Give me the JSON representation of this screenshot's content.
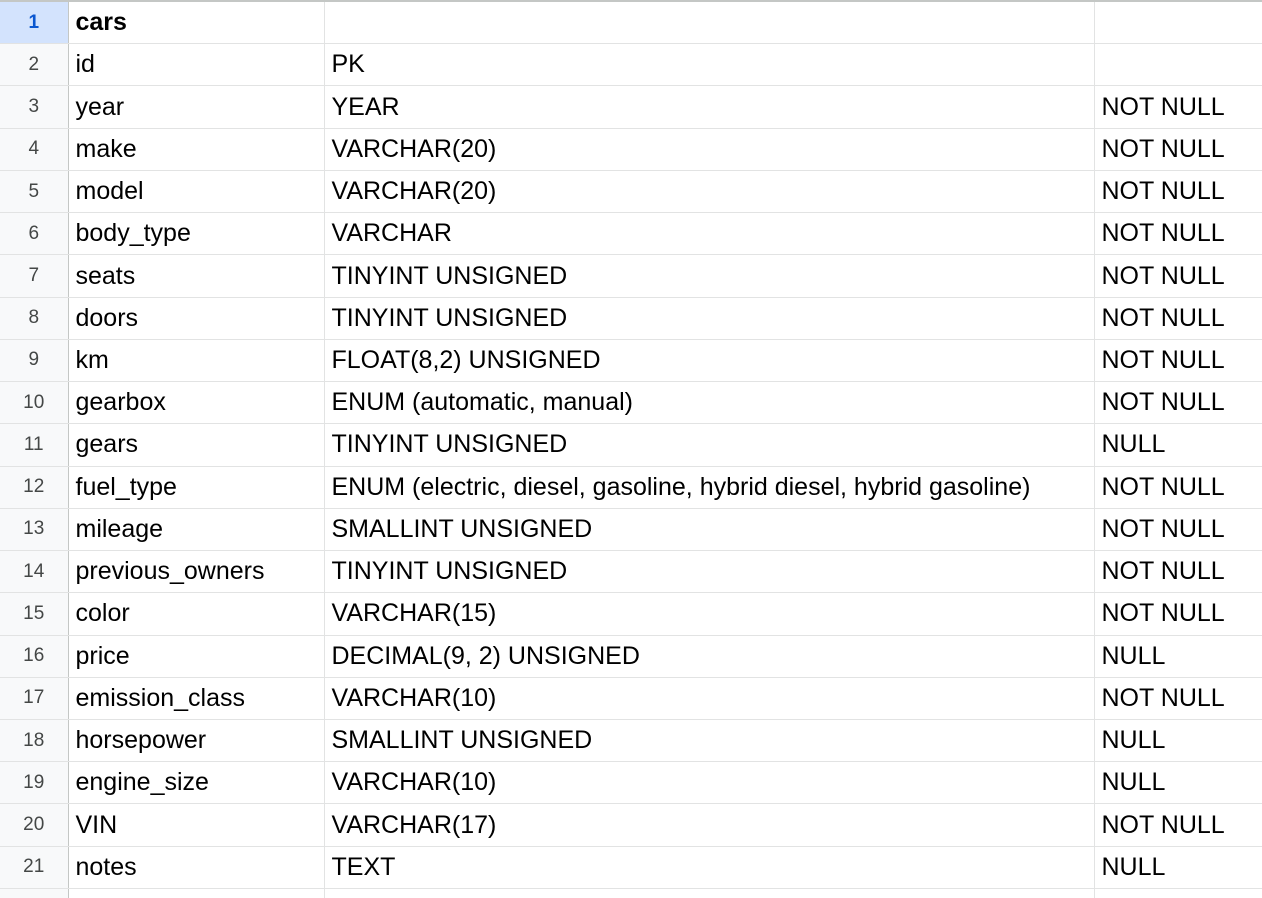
{
  "rows": [
    {
      "num": "1",
      "a": "cars",
      "b": "",
      "c": ""
    },
    {
      "num": "2",
      "a": "id",
      "b": "PK",
      "c": ""
    },
    {
      "num": "3",
      "a": "year",
      "b": "YEAR",
      "c": "NOT NULL"
    },
    {
      "num": "4",
      "a": "make",
      "b": "VARCHAR(20)",
      "c": "NOT NULL"
    },
    {
      "num": "5",
      "a": "model",
      "b": "VARCHAR(20)",
      "c": "NOT NULL"
    },
    {
      "num": "6",
      "a": "body_type",
      "b": "VARCHAR",
      "c": "NOT NULL"
    },
    {
      "num": "7",
      "a": "seats",
      "b": "TINYINT UNSIGNED",
      "c": "NOT NULL"
    },
    {
      "num": "8",
      "a": "doors",
      "b": "TINYINT UNSIGNED",
      "c": "NOT NULL"
    },
    {
      "num": "9",
      "a": "km",
      "b": "FLOAT(8,2) UNSIGNED",
      "c": "NOT NULL"
    },
    {
      "num": "10",
      "a": "gearbox",
      "b": "ENUM (automatic, manual)",
      "c": "NOT NULL"
    },
    {
      "num": "11",
      "a": "gears",
      "b": "TINYINT UNSIGNED",
      "c": "NULL"
    },
    {
      "num": "12",
      "a": "fuel_type",
      "b": "ENUM (electric, diesel, gasoline, hybrid diesel, hybrid gasoline)",
      "c": "NOT NULL"
    },
    {
      "num": "13",
      "a": "mileage",
      "b": "SMALLINT UNSIGNED",
      "c": "NOT NULL"
    },
    {
      "num": "14",
      "a": "previous_owners",
      "b": "TINYINT UNSIGNED",
      "c": "NOT NULL"
    },
    {
      "num": "15",
      "a": "color",
      "b": "VARCHAR(15)",
      "c": "NOT NULL"
    },
    {
      "num": "16",
      "a": "price",
      "b": "DECIMAL(9, 2) UNSIGNED",
      "c": "NULL"
    },
    {
      "num": "17",
      "a": "emission_class",
      "b": "VARCHAR(10)",
      "c": "NOT NULL"
    },
    {
      "num": "18",
      "a": "horsepower",
      "b": "SMALLINT UNSIGNED",
      "c": "NULL"
    },
    {
      "num": "19",
      "a": "engine_size",
      "b": "VARCHAR(10)",
      "c": "NULL"
    },
    {
      "num": "20",
      "a": "VIN",
      "b": "VARCHAR(17)",
      "c": "NOT NULL"
    },
    {
      "num": "21",
      "a": "notes",
      "b": "TEXT",
      "c": "NULL"
    }
  ],
  "active_row": "1",
  "colors": {
    "active_row_header_bg": "#d3e3fd",
    "active_row_header_text": "#0b57d0",
    "gridline": "#e2e3e3",
    "row_header_bg": "#f8f9fa"
  }
}
